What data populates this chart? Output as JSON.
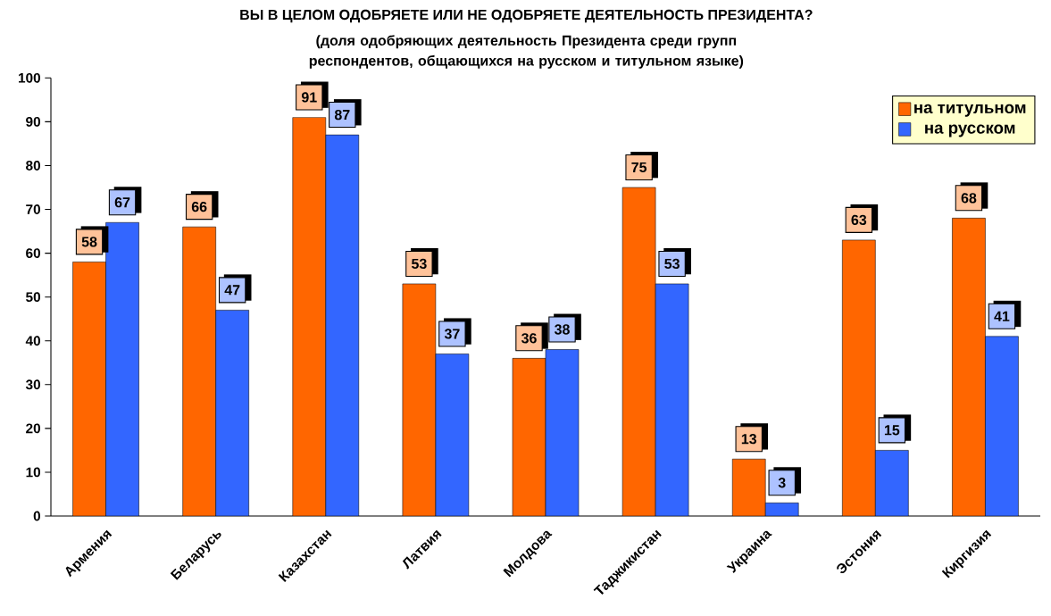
{
  "chart_data": {
    "type": "bar",
    "title": "ВЫ В ЦЕЛОМ ОДОБРЯЕТЕ ИЛИ НЕ ОДОБРЯЕТЕ ДЕЯТЕЛЬНОСТЬ ПРЕЗИДЕНТА?",
    "subtitle": "(доля одобряющих деятельность Президента среди групп респондентов, общающихся на русском и титульном языке)",
    "categories": [
      "Армения",
      "Беларусь",
      "Казахстан",
      "Латвия",
      "Молдова",
      "Таджикистан",
      "Украина",
      "Эстония",
      "Киргизия"
    ],
    "series": [
      {
        "name": "на титульном",
        "color": "#ff6600",
        "values": [
          58,
          66,
          91,
          53,
          36,
          75,
          13,
          63,
          68
        ]
      },
      {
        "name": "на русском",
        "color": "#3366ff",
        "values": [
          67,
          47,
          87,
          37,
          38,
          53,
          3,
          15,
          41
        ]
      }
    ],
    "ylim": [
      0,
      100
    ],
    "yticks": [
      0,
      10,
      20,
      30,
      40,
      50,
      60,
      70,
      80,
      90,
      100
    ],
    "data_labels": true,
    "legend": "top right"
  }
}
